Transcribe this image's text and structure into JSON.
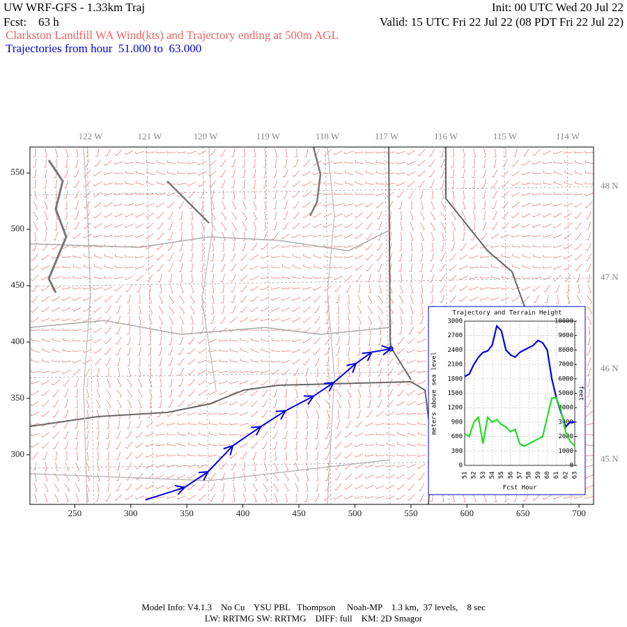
{
  "header": {
    "title": "UW WRF-GFS - 1.33km Traj",
    "init": "Init: 00 UTC Wed 20 Jul 22",
    "forecast": "Fcst:    63 h",
    "valid": "Valid: 15 UTC Fri 22 Jul 22 (08 PDT Fri 22 Jul 22)",
    "subtitle": "Clarkston Landfill WA Wind(kts) and Trajectory ending at 500m AGL",
    "trajectory_note": "Trajectories from hour  51.000 to  63.000"
  },
  "map": {
    "xlim": [
      210,
      713
    ],
    "ylim": [
      256,
      573
    ],
    "xticks": [
      250,
      300,
      350,
      400,
      450,
      500,
      550,
      600,
      650,
      700
    ],
    "yticks": [
      300,
      350,
      400,
      450,
      500,
      550
    ],
    "longitude_labels": [
      "122 W",
      "121 W",
      "120 W",
      "119 W",
      "118 W",
      "117 W",
      "116 W",
      "115 W",
      "114 W"
    ],
    "latitude_labels": [
      "48 N",
      "47 N",
      "46 N",
      "45 N"
    ],
    "trajectory": {
      "color": "#0000dd",
      "x": [
        313,
        348,
        369,
        391,
        416,
        438,
        463,
        481,
        501,
        515,
        532
      ],
      "y": [
        260,
        271,
        285,
        308,
        325,
        339,
        352,
        364,
        381,
        391,
        394
      ]
    }
  },
  "inset": {
    "title": "Trajectory and Terrain Height",
    "x_label": "Fcst Hour",
    "y_label": "meters above sea level",
    "y2_label": "feet",
    "xlim": [
      51,
      63
    ],
    "ylim": [
      0,
      3000
    ],
    "y2lim": [
      0,
      10000
    ],
    "xticks": [
      51,
      52,
      53,
      54,
      55,
      56,
      57,
      58,
      59,
      60,
      61,
      62,
      63
    ],
    "yticks": [
      0,
      300,
      600,
      900,
      1200,
      1500,
      1800,
      2100,
      2400,
      2700,
      3000
    ],
    "y2ticks": [
      0,
      1000,
      2000,
      3000,
      4000,
      5000,
      6000,
      7000,
      8000,
      9000,
      10000
    ],
    "x": [
      51,
      51.5,
      52,
      52.5,
      53,
      53.5,
      54,
      54.5,
      55,
      55.5,
      56,
      56.5,
      57,
      57.5,
      58,
      58.5,
      59,
      59.5,
      60,
      60.5,
      61,
      61.5,
      62,
      62.5,
      63
    ],
    "series": [
      {
        "color": "#0000dd",
        "values": [
          1850,
          1900,
          2100,
          2250,
          2350,
          2380,
          2500,
          2900,
          2800,
          2400,
          2300,
          2250,
          2350,
          2400,
          2450,
          2500,
          2600,
          2550,
          2400,
          1800,
          1400,
          1100,
          800,
          900,
          900
        ]
      },
      {
        "color": "#22dd22",
        "values": [
          650,
          600,
          900,
          1000,
          450,
          1000,
          900,
          950,
          850,
          800,
          700,
          750,
          450,
          400,
          450,
          500,
          550,
          600,
          1000,
          1400,
          1400,
          1150,
          700,
          500,
          400
        ]
      }
    ]
  },
  "footer": {
    "line1": "Model Info: V4.1.3    No Cu    YSU PBL   Thompson     Noah-MP    1.3 km,  37 levels,    8 sec",
    "line2": "LW: RRTMG SW: RRTMG    DIFF: full    KM: 2D Smagor"
  }
}
